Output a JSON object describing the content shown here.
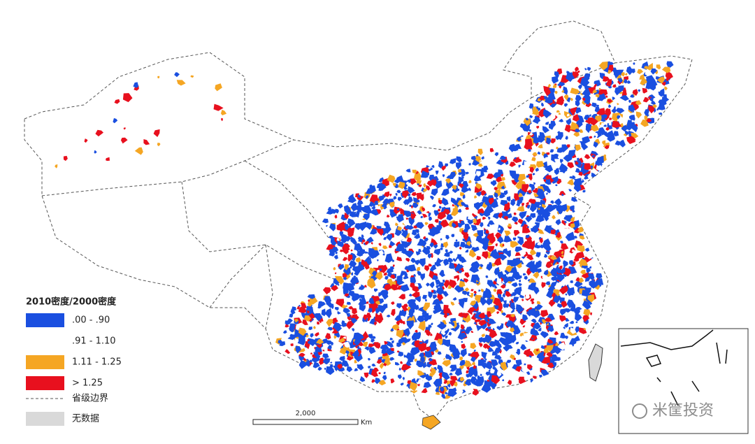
{
  "legend": {
    "title": "2010密度/2000密度",
    "items": [
      {
        "label": ".00 - .90",
        "color": "#1a4fe0"
      },
      {
        "label": ".91 - 1.10",
        "color": "#ffffff"
      },
      {
        "label": "1.11 - 1.25",
        "color": "#f5a623"
      },
      {
        "label": "> 1.25",
        "color": "#e8101e"
      }
    ],
    "boundary": "省级边界",
    "no_data": "无数据"
  },
  "scale_bar": {
    "label": "2,000",
    "unit": "Km"
  },
  "watermark": "米筐投资"
}
